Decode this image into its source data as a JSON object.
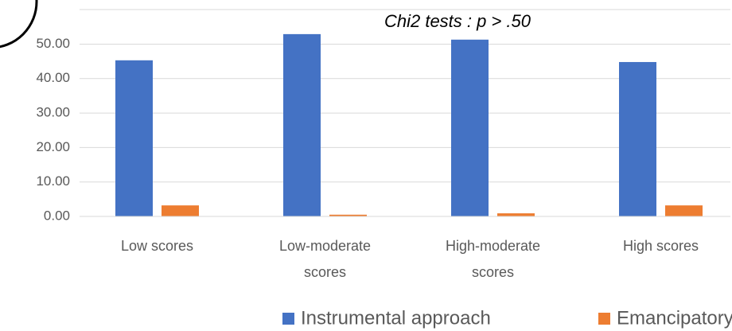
{
  "chart_data": {
    "type": "bar",
    "annotation": "Chi2 tests : p > .50",
    "categories": [
      "Low scores",
      "Low-moderate scores",
      "High-moderate scores",
      "High scores"
    ],
    "series": [
      {
        "name": "Instrumental approach",
        "color": "#4472c4",
        "values": [
          45.3,
          52.9,
          51.3,
          44.8
        ]
      },
      {
        "name": "Emancipatory approach",
        "color": "#ed7d31",
        "values": [
          3.2,
          0.5,
          0.9,
          3.2
        ]
      }
    ],
    "ylim": [
      0,
      62.8
    ],
    "yticks": [
      {
        "value": 0,
        "label": "0.00"
      },
      {
        "value": 10,
        "label": "10.00"
      },
      {
        "value": 20,
        "label": "20.00"
      },
      {
        "value": 30,
        "label": "30.00"
      },
      {
        "value": 40,
        "label": "40.00"
      },
      {
        "value": 50,
        "label": "50.00"
      }
    ],
    "grid": true,
    "legend": "bottom"
  }
}
